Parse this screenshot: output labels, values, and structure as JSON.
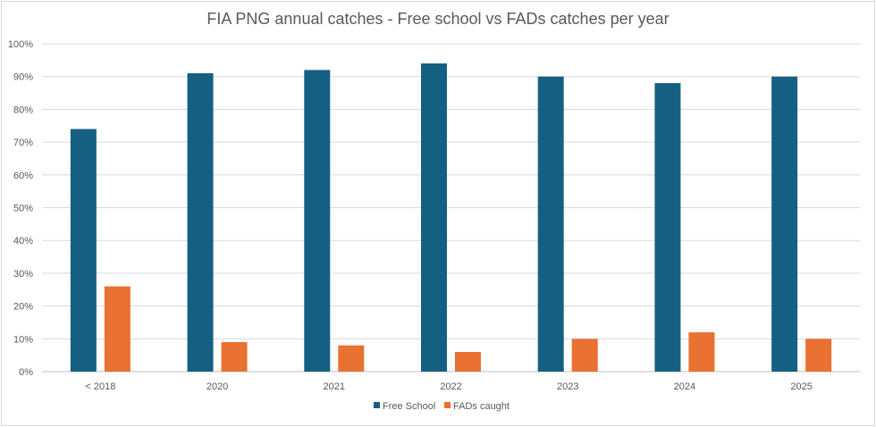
{
  "chart_data": {
    "type": "bar",
    "title": "FIA PNG annual catches - Free school vs FADs catches per year",
    "xlabel": "",
    "ylabel": "",
    "categories": [
      "< 2018",
      "2020",
      "2021",
      "2022",
      "2023",
      "2024",
      "2025"
    ],
    "series": [
      {
        "name": "Free School",
        "color": "#156082",
        "values": [
          74,
          91,
          92,
          94,
          90,
          88,
          90
        ]
      },
      {
        "name": "FADs caught",
        "color": "#E97132",
        "values": [
          26,
          9,
          8,
          6,
          10,
          12,
          10
        ]
      }
    ],
    "ylim": [
      0,
      100
    ],
    "yticks": [
      "0%",
      "10%",
      "20%",
      "30%",
      "40%",
      "50%",
      "60%",
      "70%",
      "80%",
      "90%",
      "100%"
    ],
    "grid": true,
    "legend": "bottom"
  }
}
